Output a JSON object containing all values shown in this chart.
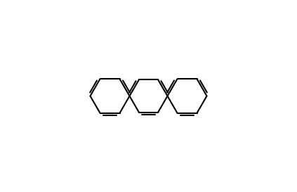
{
  "bg_color": "#ffffff",
  "line_color": "#000000",
  "label_color": "#000000",
  "figsize": [
    4.23,
    2.73
  ],
  "dpi": 100
}
